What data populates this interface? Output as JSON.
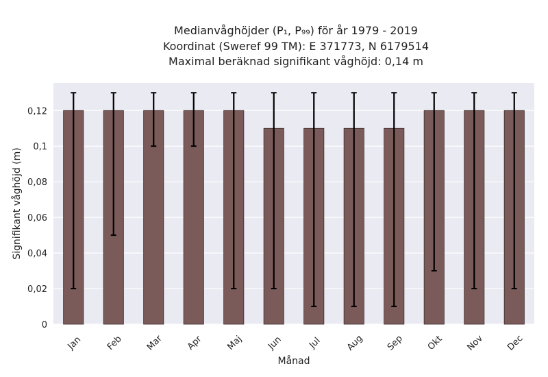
{
  "chart_data": {
    "type": "bar",
    "title_lines": [
      "Medianvåghöjder (P₁, P₉₉) för år 1979 - 2019",
      "Koordinat (Sweref 99 TM): E 371773, N 6179514",
      "Maximal beräknad signifikant våghöjd: 0,14 m"
    ],
    "xlabel": "Månad",
    "ylabel": "Signifikant våghöjd (m)",
    "categories": [
      "Jan",
      "Feb",
      "Mar",
      "Apr",
      "Maj",
      "Jun",
      "Jul",
      "Aug",
      "Sep",
      "Okt",
      "Nov",
      "Dec"
    ],
    "values": [
      0.12,
      0.12,
      0.12,
      0.12,
      0.12,
      0.11,
      0.11,
      0.11,
      0.11,
      0.12,
      0.12,
      0.12
    ],
    "error_low": [
      0.02,
      0.05,
      0.1,
      0.1,
      0.02,
      0.02,
      0.01,
      0.01,
      0.01,
      0.03,
      0.02,
      0.02
    ],
    "error_high": [
      0.13,
      0.13,
      0.13,
      0.13,
      0.13,
      0.13,
      0.13,
      0.13,
      0.13,
      0.13,
      0.13,
      0.13
    ],
    "yticks": [
      0,
      0.02,
      0.04,
      0.06,
      0.08,
      0.1,
      0.12
    ],
    "ytick_labels": [
      "0",
      "0,02",
      "0,04",
      "0,06",
      "0,08",
      "0,1",
      "0,12"
    ],
    "ylim": [
      0,
      0.1355
    ],
    "grid": true,
    "colors": {
      "bar": "#7b5a5a",
      "bar_edge": "#3d2b2b",
      "error": "#000000",
      "plot_bg": "#eaeaf2",
      "grid": "#ffffff"
    }
  }
}
